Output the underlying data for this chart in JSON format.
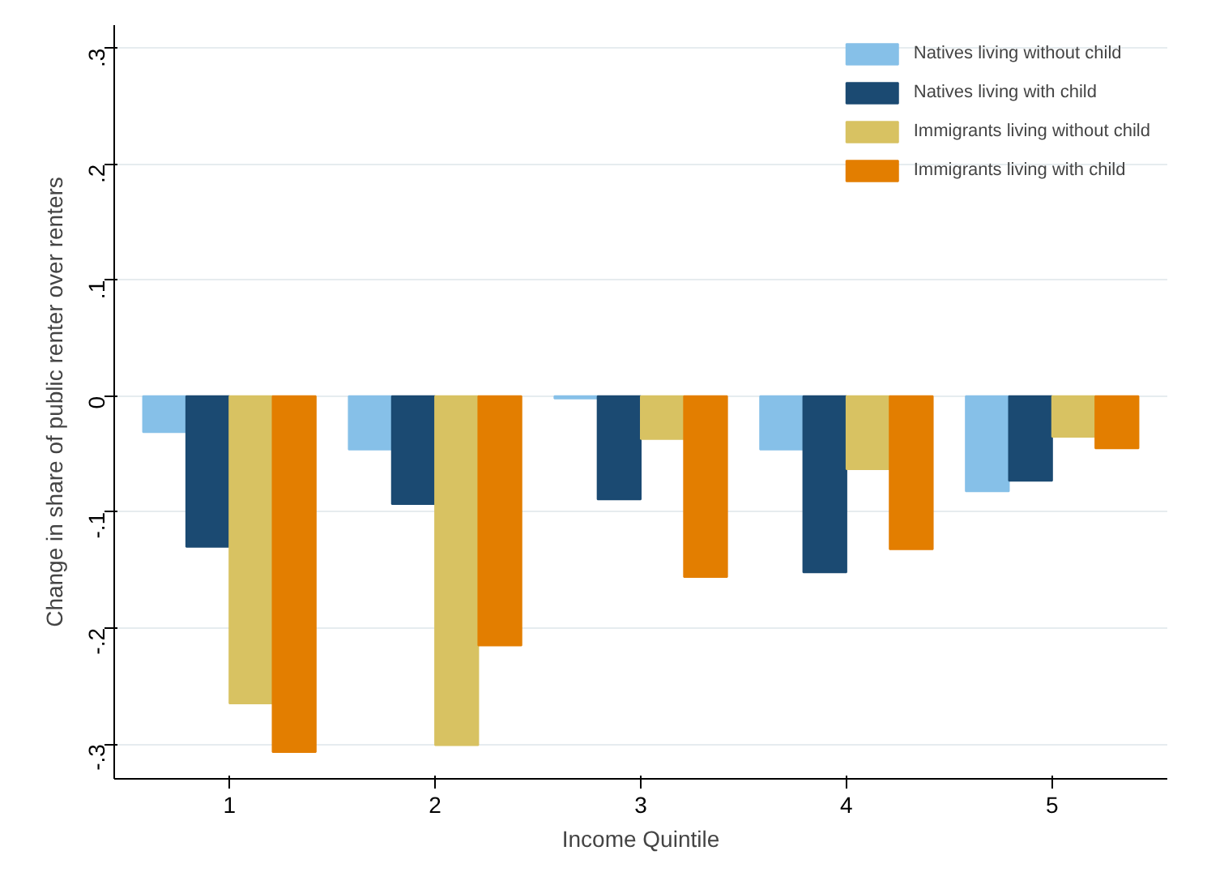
{
  "chart_data": {
    "type": "bar",
    "xlabel": "Income Quintile",
    "ylabel": "Change in share of public renter over renters",
    "categories": [
      "1",
      "2",
      "3",
      "4",
      "5"
    ],
    "series": [
      {
        "name": "Natives living without child",
        "color": "#86c0e8",
        "values": [
          -0.031,
          -0.046,
          -0.002,
          -0.046,
          -0.082
        ]
      },
      {
        "name": "Natives living with child",
        "color": "#1b4a72",
        "values": [
          -0.13,
          -0.093,
          -0.089,
          -0.152,
          -0.073
        ]
      },
      {
        "name": "Immigrants living without child",
        "color": "#d8c262",
        "values": [
          -0.265,
          -0.301,
          -0.037,
          -0.063,
          -0.035
        ]
      },
      {
        "name": "Immigrants living with child",
        "color": "#e37e00",
        "values": [
          -0.307,
          -0.215,
          -0.156,
          -0.132,
          -0.045
        ]
      }
    ],
    "ylim": [
      -0.33,
      0.32
    ],
    "yticks": [
      {
        "value": -0.3,
        "label": "-.3"
      },
      {
        "value": -0.2,
        "label": "-.2"
      },
      {
        "value": -0.1,
        "label": "-.1"
      },
      0,
      {
        "value": 0.1,
        "label": ".1"
      },
      {
        "value": 0.2,
        "label": ".2"
      },
      {
        "value": 0.3,
        "label": ".3"
      }
    ],
    "grid": "y",
    "legend": "top right"
  }
}
